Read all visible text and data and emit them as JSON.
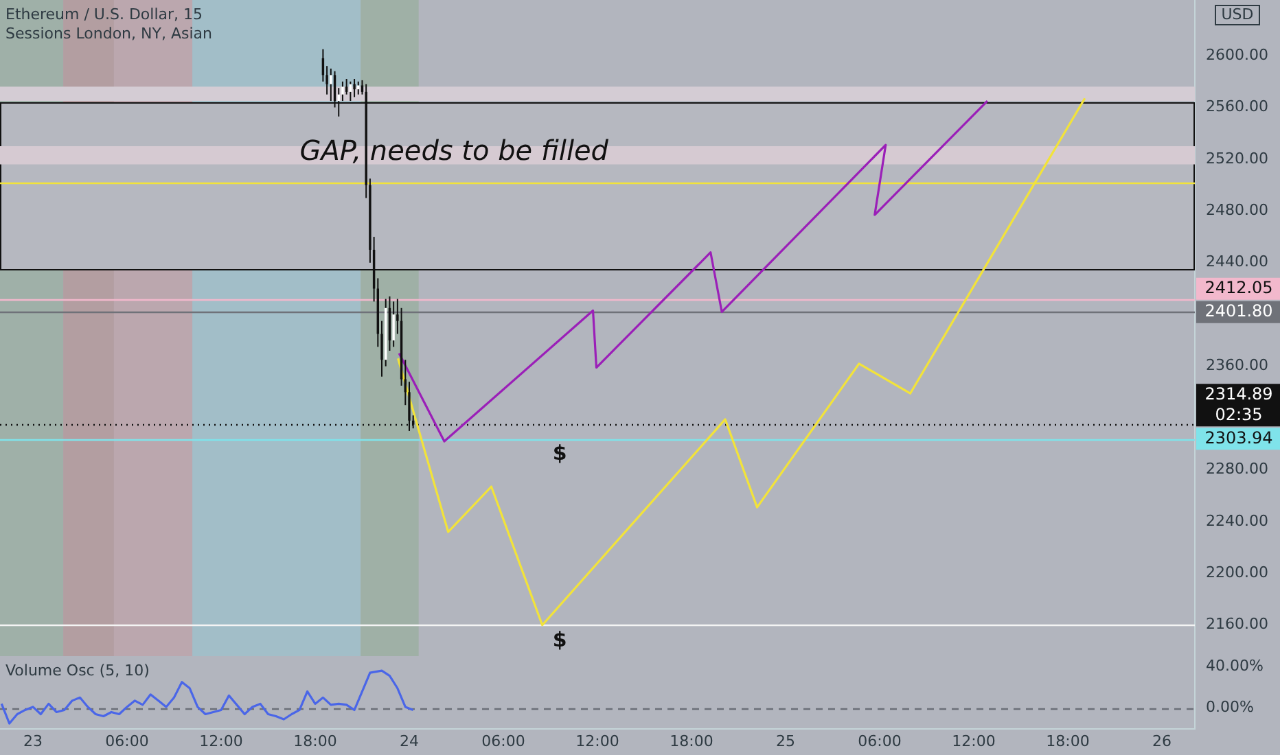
{
  "chart_data": [
    {
      "type": "candlestick",
      "title": "Ethereum / U.S. Dollar, 15",
      "subtitle": "Sessions London, NY, Asian",
      "x": [
        "--01-23T18:30",
        "--01-23T18:45",
        "--01-23T19:00",
        "--01-23T19:15",
        "--01-23T19:30",
        "--01-23T19:45",
        "--01-23T20:00",
        "--01-23T20:15",
        "--01-23T20:30",
        "--01-23T20:45",
        "--01-23T21:00",
        "--01-23T21:15",
        "--01-23T21:30",
        "--01-23T21:45",
        "--01-23T22:00",
        "--01-23T22:15",
        "--01-23T22:30",
        "--01-23T22:45",
        "--01-23T23:00",
        "--01-23T23:15",
        "--01-23T23:30",
        "--01-23T23:45",
        "--01-24T00:00",
        "--01-24T00:15"
      ],
      "ohlc": [
        [
          2598,
          2605,
          2580,
          2585
        ],
        [
          2585,
          2592,
          2570,
          2578
        ],
        [
          2578,
          2590,
          2565,
          2585
        ],
        [
          2585,
          2588,
          2560,
          2565
        ],
        [
          2565,
          2575,
          2553,
          2570
        ],
        [
          2570,
          2580,
          2565,
          2576
        ],
        [
          2576,
          2582,
          2570,
          2572
        ],
        [
          2572,
          2580,
          2565,
          2578
        ],
        [
          2578,
          2582,
          2568,
          2574
        ],
        [
          2574,
          2580,
          2570,
          2577
        ],
        [
          2577,
          2581,
          2570,
          2572
        ],
        [
          2572,
          2578,
          2490,
          2500
        ],
        [
          2500,
          2505,
          2440,
          2450
        ],
        [
          2450,
          2460,
          2410,
          2420
        ],
        [
          2420,
          2428,
          2375,
          2385
        ],
        [
          2385,
          2395,
          2352,
          2365
        ],
        [
          2365,
          2412,
          2360,
          2405
        ],
        [
          2405,
          2414,
          2372,
          2380
        ],
        [
          2380,
          2410,
          2375,
          2400
        ],
        [
          2400,
          2412,
          2385,
          2395
        ],
        [
          2395,
          2405,
          2345,
          2350
        ],
        [
          2350,
          2365,
          2330,
          2340
        ],
        [
          2340,
          2348,
          2310,
          2318
        ],
        [
          2318,
          2322,
          2312,
          2314.89
        ]
      ],
      "series": [
        {
          "type": "line",
          "color": "#9b1fb8",
          "x": [
            "--01-23T23:21",
            "--01-24T02:14",
            "--01-24T11:43",
            "--01-24T11:56",
            "--01-24T19:13",
            "--01-24T19:56",
            "--01-25T06:23",
            "--01-25T05:41",
            "--01-25T12:52"
          ],
          "values": [
            2370,
            2302,
            2403,
            2359,
            2448,
            2402,
            2531,
            2477,
            2565
          ]
        },
        {
          "type": "line",
          "color": "#f2e33a",
          "x": [
            "--01-23T23:17",
            "--01-24T02:29",
            "--01-24T05:14",
            "--01-24T08:29",
            "--01-24T20:09",
            "--01-24T22:11",
            "--01-25T04:41",
            "--01-25T07:57",
            "--01-25T19:05"
          ],
          "values": [
            2366,
            2232,
            2267,
            2160,
            2319,
            2251,
            2362,
            2339,
            2567
          ]
        }
      ],
      "marker": "none",
      "line_style": "solid",
      "grid": false,
      "legend": false,
      "tick_labels": "y",
      "xlim": [
        "--01-22T21:54",
        "--01-26T02:06"
      ],
      "ylim": [
        2136,
        2643
      ],
      "yticks": [
        {
          "value": 2160,
          "label": "2160.00"
        },
        {
          "value": 2200,
          "label": "2200.00"
        },
        {
          "value": 2240,
          "label": "2240.00"
        },
        {
          "value": 2280,
          "label": "2280.00"
        },
        {
          "value": 2360,
          "label": "2360.00"
        },
        {
          "value": 2440,
          "label": "2440.00"
        },
        {
          "value": 2480,
          "label": "2480.00"
        },
        {
          "value": 2520,
          "label": "2520.00"
        },
        {
          "value": 2560,
          "label": "2560.00"
        },
        {
          "value": 2600,
          "label": "2600.00"
        }
      ],
      "bands": [
        {
          "axis": "x",
          "from": "--01-22T21:54",
          "to": "--01-23T01:56",
          "color": "#9fb0a8"
        },
        {
          "axis": "x",
          "from": "--01-23T01:56",
          "to": "--01-23T05:10",
          "color": "#b39ea1"
        },
        {
          "axis": "x",
          "from": "--01-23T05:10",
          "to": "--01-23T10:10",
          "color": "#bba7ae"
        },
        {
          "axis": "x",
          "from": "--01-23T10:10",
          "to": "--01-23T20:54",
          "color": "#a2bec8"
        },
        {
          "axis": "x",
          "from": "--01-23T20:54",
          "to": "--01-24T00:36",
          "color": "#9fb0a6"
        },
        {
          "axis": "y",
          "from": 2434,
          "to": 2564,
          "color": "#b6b8c0",
          "label": "GAP, needs to be filled"
        },
        {
          "axis": "y",
          "from": 2516,
          "to": 2530,
          "color": "#d6cad2"
        },
        {
          "axis": "y",
          "from": 2565,
          "to": 2576,
          "color": "#d4ccd4"
        }
      ],
      "ref_lines": [
        {
          "axis": "y",
          "value": 2502,
          "color": "#f2e33a",
          "line_style": "solid"
        },
        {
          "axis": "y",
          "value": 2160,
          "color": "#f4f4f4",
          "line_style": "solid"
        },
        {
          "axis": "y",
          "value": 2412.05,
          "color": "#f2b8cc",
          "line_style": "solid",
          "label": "2412.05"
        },
        {
          "axis": "y",
          "value": 2401.8,
          "color": "#6f7279",
          "line_style": "solid",
          "label": "2401.80"
        },
        {
          "axis": "y",
          "value": 2314.89,
          "color": "#111111",
          "line_style": "dotted",
          "label": "2314.89 02:35"
        },
        {
          "axis": "y",
          "value": 2303.94,
          "color": "#7fe3ea",
          "line_style": "solid",
          "label": "2303.94"
        }
      ],
      "annotations": [
        {
          "text": "$",
          "x": "--01-24T09:36",
          "y": 2303.94
        },
        {
          "text": "$",
          "x": "--01-24T09:36",
          "y": 2160
        },
        "USD"
      ]
    },
    {
      "type": "line",
      "title": "Volume Osc (5, 10)",
      "series": [
        {
          "type": "line",
          "color": "#4a66e8",
          "x": [
            "--01-22T22:00",
            "--01-22T22:30",
            "--01-22T23:00",
            "--01-22T23:30",
            "--01-23T00:00",
            "--01-23T00:30",
            "--01-23T01:00",
            "--01-23T01:30",
            "--01-23T02:00",
            "--01-23T02:30",
            "--01-23T03:00",
            "--01-23T03:30",
            "--01-23T04:00",
            "--01-23T04:30",
            "--01-23T05:00",
            "--01-23T05:30",
            "--01-23T06:00",
            "--01-23T06:30",
            "--01-23T07:00",
            "--01-23T07:30",
            "--01-23T08:00",
            "--01-23T08:30",
            "--01-23T09:00",
            "--01-23T09:30",
            "--01-23T10:00",
            "--01-23T10:30",
            "--01-23T11:00",
            "--01-23T11:30",
            "--01-23T12:00",
            "--01-23T12:30",
            "--01-23T13:00",
            "--01-23T13:30",
            "--01-23T14:00",
            "--01-23T14:30",
            "--01-23T15:00",
            "--01-23T15:30",
            "--01-23T16:00",
            "--01-23T16:30",
            "--01-23T17:00",
            "--01-23T17:30",
            "--01-23T18:00",
            "--01-23T18:30",
            "--01-23T19:00",
            "--01-23T19:30",
            "--01-23T20:00",
            "--01-23T20:30",
            "--01-23T21:30",
            "--01-23T22:15",
            "--01-23T22:45",
            "--01-23T23:15",
            "--01-23T23:45",
            "--01-24T00:15"
          ],
          "values": [
            4,
            -15,
            -6,
            -2,
            1,
            -6,
            4,
            -4,
            -2,
            7,
            10,
            1,
            -6,
            -8,
            -4,
            -6,
            1,
            7,
            3,
            13,
            7,
            1,
            10,
            25,
            19,
            1,
            -6,
            -4,
            -2,
            12,
            3,
            -6,
            1,
            4,
            -6,
            -8,
            -11,
            -6,
            -2,
            16,
            4,
            10,
            3,
            4,
            3,
            -2,
            34,
            36,
            31,
            19,
            1,
            -2
          ]
        }
      ],
      "marker": "none",
      "line_style": "solid",
      "grid": false,
      "legend": false,
      "xlim": [
        "--01-22T21:54",
        "--01-26T02:06"
      ],
      "ylim": [
        -20,
        50
      ],
      "xticks": [
        {
          "value": "--01-23",
          "label": "23"
        },
        {
          "value": "--01-23T06:00",
          "label": "06:00"
        },
        {
          "value": "--01-23T12:00",
          "label": "12:00"
        },
        {
          "value": "--01-23T18:00",
          "label": "18:00"
        },
        {
          "value": "--01-24",
          "label": "24"
        },
        {
          "value": "--01-24T06:00",
          "label": "06:00"
        },
        {
          "value": "--01-24T12:00",
          "label": "12:00"
        },
        {
          "value": "--01-24T18:00",
          "label": "18:00"
        },
        {
          "value": "--01-25",
          "label": "25"
        },
        {
          "value": "--01-25T06:00",
          "label": "06:00"
        },
        {
          "value": "--01-25T12:00",
          "label": "12:00"
        },
        {
          "value": "--01-25T18:00",
          "label": "18:00"
        },
        {
          "value": "--01-26",
          "label": "26"
        }
      ],
      "yticks": [
        {
          "value": 0,
          "label": "0.00%"
        },
        {
          "value": 40,
          "label": "40.00%"
        }
      ],
      "ref_lines": [
        {
          "axis": "y",
          "value": 0,
          "color": "#6b6f78",
          "line_style": "dashed"
        }
      ]
    }
  ]
}
